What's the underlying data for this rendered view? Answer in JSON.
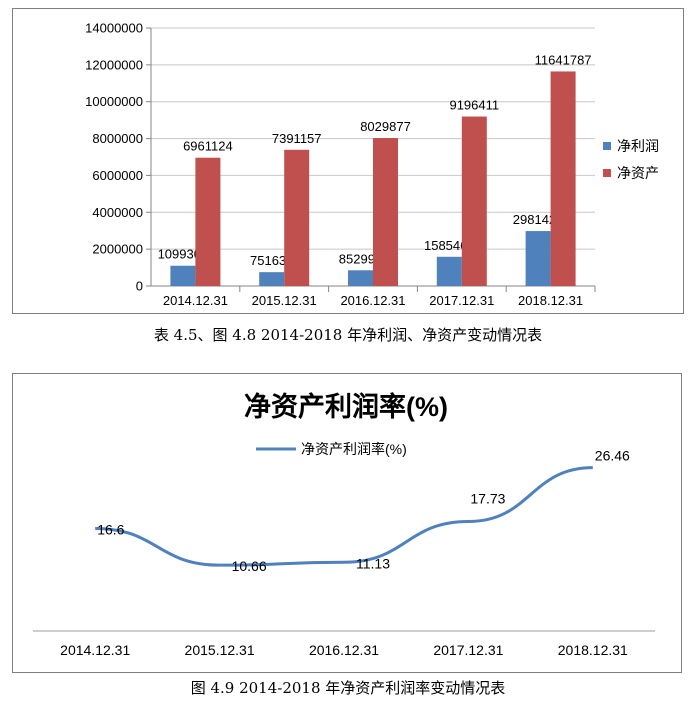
{
  "chart_data": [
    {
      "type": "bar",
      "categories": [
        "2014.12.31",
        "2015.12.31",
        "2016.12.31",
        "2017.12.31",
        "2018.12.31"
      ],
      "series": [
        {
          "name": "净利润",
          "values": [
            1099302,
            751639,
            852992,
            1585467,
            2981428
          ],
          "color": "#4f81bd"
        },
        {
          "name": "净资产",
          "values": [
            6961124,
            7391157,
            8029877,
            9196411,
            11641787
          ],
          "color": "#c0504d"
        }
      ],
      "ylim": [
        0,
        14000000
      ],
      "yticks": [
        "0",
        "2000000",
        "4000000",
        "6000000",
        "8000000",
        "10000000",
        "12000000",
        "14000000"
      ],
      "grid": true,
      "legend": "right"
    },
    {
      "type": "line",
      "title": "净资产利润率(%)",
      "categories": [
        "2014.12.31",
        "2015.12.31",
        "2016.12.31",
        "2017.12.31",
        "2018.12.31"
      ],
      "series": [
        {
          "name": "净资产利润率(%)",
          "values": [
            16.6,
            10.66,
            11.13,
            17.73,
            26.46
          ],
          "color": "#4f81bd"
        }
      ],
      "data_labels": [
        "16.6",
        "10.66",
        "11.13",
        "17.73",
        "26.46"
      ],
      "grid": false,
      "legend": "top"
    }
  ],
  "captions": {
    "fig1": "表 4.5、图 4.8 2014-2018 年净利润、净资产变动情况表",
    "fig2": "图 4.9 2014-2018 年净资产利润率变动情况表"
  }
}
